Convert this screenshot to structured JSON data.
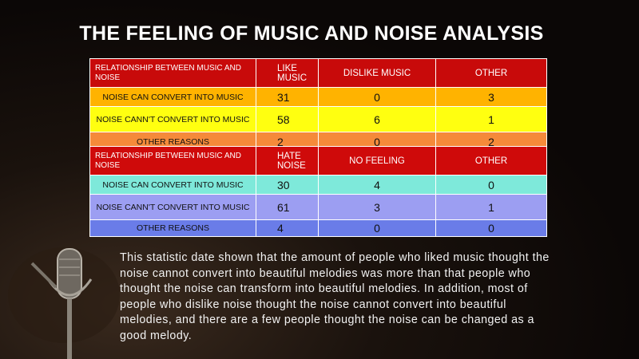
{
  "title": "THE FEELING OF MUSIC AND NOISE ANALYSIS",
  "table1": {
    "header": [
      "RELATIONSHIP  BETWEEN MUSIC AND NOISE",
      "LIKE MUSIC",
      "DISLIKE MUSIC",
      "OTHER"
    ],
    "rows": [
      [
        "NOISE CAN CONVERT INTO MUSIC",
        31,
        0,
        3
      ],
      [
        "NOISE CANN'T CONVERT INTO MUSIC",
        58,
        6,
        1
      ],
      [
        "OTHER REASONS",
        2,
        0,
        2
      ]
    ]
  },
  "table2": {
    "header": [
      "RELATIONSHIP  BETWEEN MUSIC AND NOISE",
      "HATE NOISE",
      "NO FEELING",
      "OTHER"
    ],
    "rows": [
      [
        "NOISE CAN CONVERT INTO MUSIC",
        30,
        4,
        0
      ],
      [
        "NOISE CANN'T CONVERT INTO MUSIC",
        61,
        3,
        1
      ],
      [
        "OTHER REASONS",
        4,
        0,
        0
      ]
    ]
  },
  "paragraph": "This statistic date shown that the amount of people who liked music thought the noise cannot convert into beautiful melodies was more than that people who thought the noise can transform into beautiful melodies. In addition, most of people who dislike noise thought the noise cannot convert into beautiful melodies, and there are a few people thought the noise can be changed as a good melody."
}
